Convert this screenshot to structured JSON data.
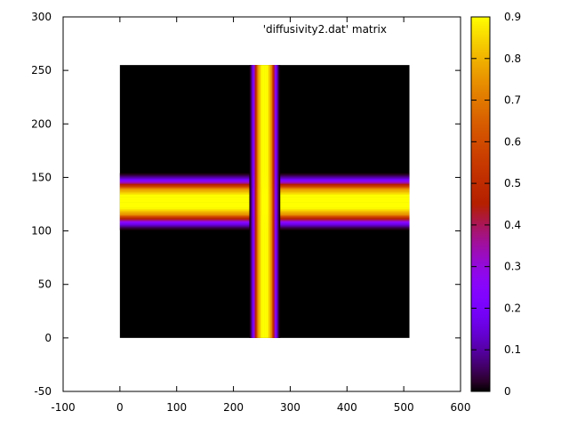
{
  "chart_data": {
    "type": "heatmap",
    "legend_entry": "'diffusivity2.dat' matrix",
    "xlim": [
      -100,
      600
    ],
    "ylim": [
      -50,
      300
    ],
    "xticks": [
      -100,
      0,
      100,
      200,
      300,
      400,
      500,
      600
    ],
    "yticks": [
      -50,
      0,
      50,
      100,
      150,
      200,
      250,
      300
    ],
    "matrix_extent": {
      "x": [
        0,
        510
      ],
      "y": [
        0,
        255
      ]
    },
    "background_value": 0.0,
    "bands": [
      {
        "orientation": "vertical",
        "center": 255,
        "peak_value": 0.9,
        "plateau_halfwidth": 5,
        "core_halfwidth": 12,
        "outer_halfwidth": 27
      },
      {
        "orientation": "horizontal",
        "center": 127.5,
        "peak_value": 0.9,
        "plateau_halfwidth": 6,
        "core_halfwidth": 12,
        "outer_halfwidth": 27
      }
    ],
    "intersection": "maximum",
    "colorbar": {
      "range": [
        0,
        0.9
      ],
      "ticks": [
        0,
        0.1,
        0.2,
        0.3,
        0.4,
        0.5,
        0.6,
        0.7,
        0.8,
        0.9
      ],
      "palette": "gnuplot-rgbformulae-7-5-15"
    },
    "grid": false,
    "legend_position": "top-right"
  }
}
